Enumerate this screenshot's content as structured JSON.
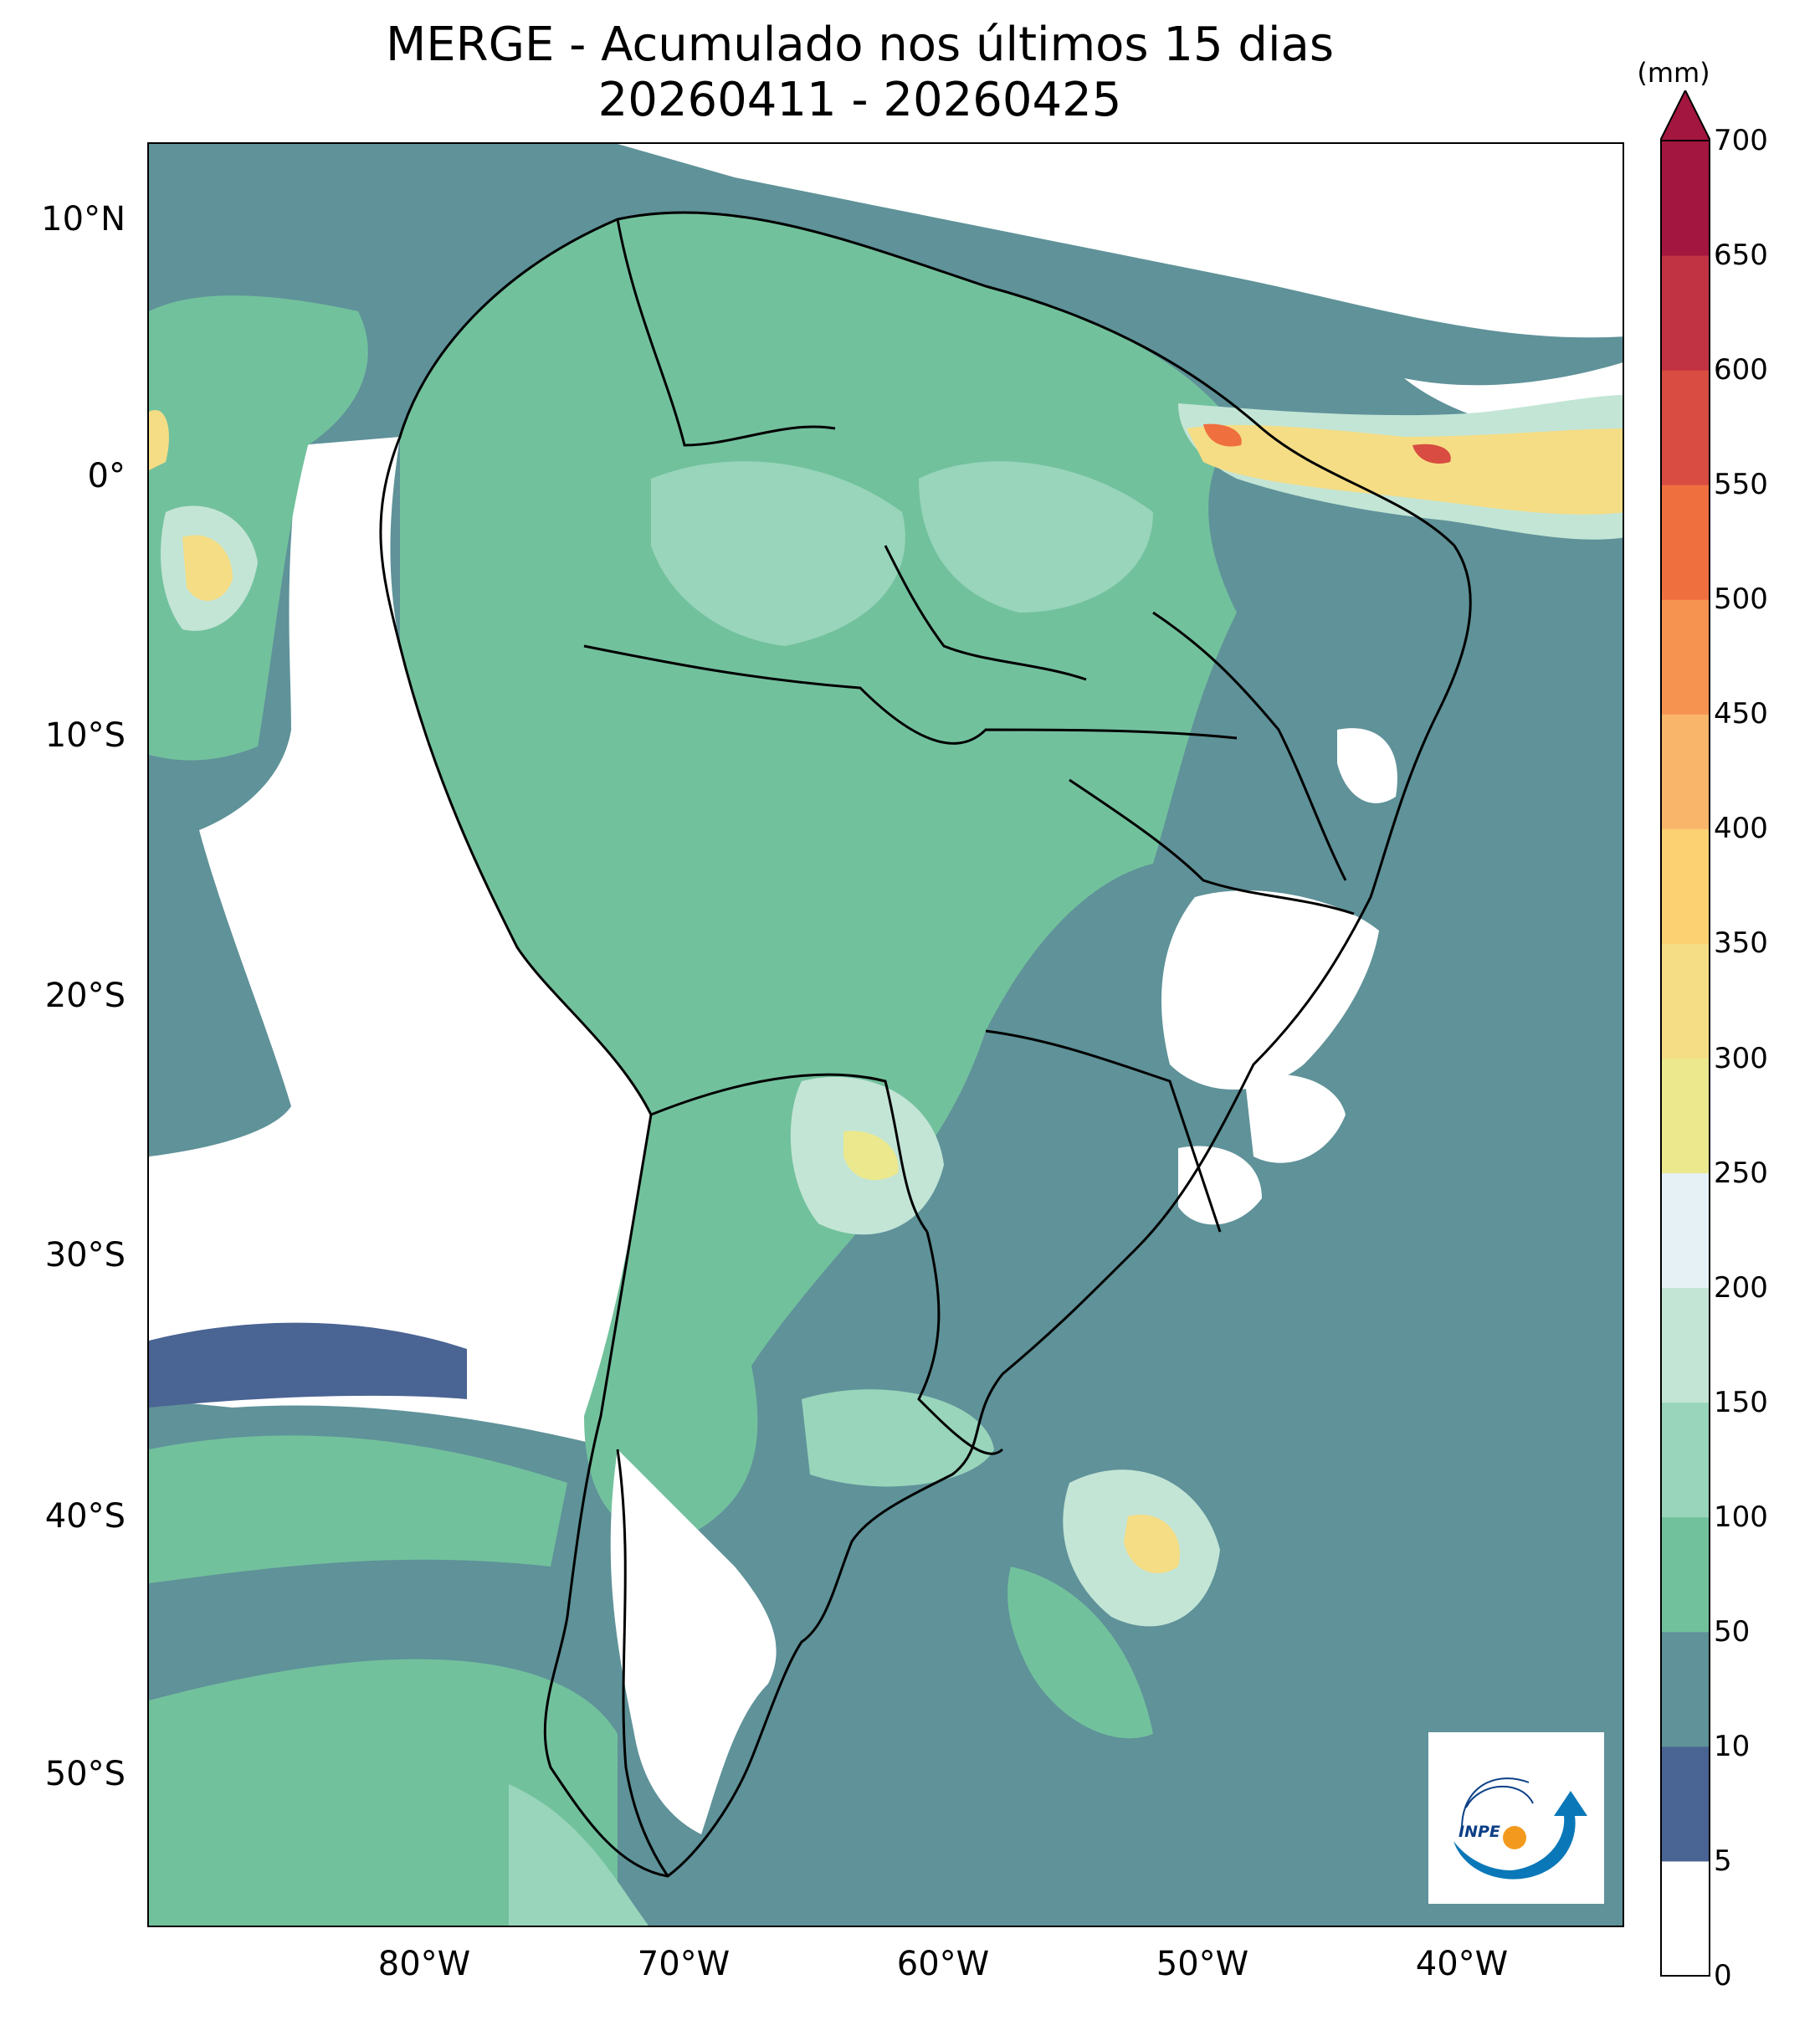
{
  "title": {
    "line1": "MERGE - Acumulado nos últimos 15 dias",
    "line2": "20260411 - 20260425"
  },
  "map": {
    "lat_labels": [
      "10°N",
      "0°",
      "10°S",
      "20°S",
      "30°S",
      "40°S",
      "50°S"
    ],
    "lon_labels": [
      "80°W",
      "70°W",
      "60°W",
      "50°W",
      "40°W"
    ],
    "ocean_color_10_50": "#5f9299"
  },
  "colorbar": {
    "unit": "(mm)",
    "ticks": [
      "0",
      "5",
      "10",
      "50",
      "100",
      "150",
      "200",
      "250",
      "300",
      "350",
      "400",
      "450",
      "500",
      "550",
      "600",
      "650",
      "700"
    ],
    "colors": [
      "#ffffff",
      "#4a6493",
      "#5f9299",
      "#72c19d",
      "#98d5bb",
      "#c3e5d6",
      "#e6f1f6",
      "#ebe88e",
      "#f5dd85",
      "#fbd172",
      "#f9b66a",
      "#f69351",
      "#ef6f3f",
      "#d84c41",
      "#c13243",
      "#a3163f"
    ],
    "extend": "max"
  },
  "logo": {
    "text": "INPE"
  }
}
